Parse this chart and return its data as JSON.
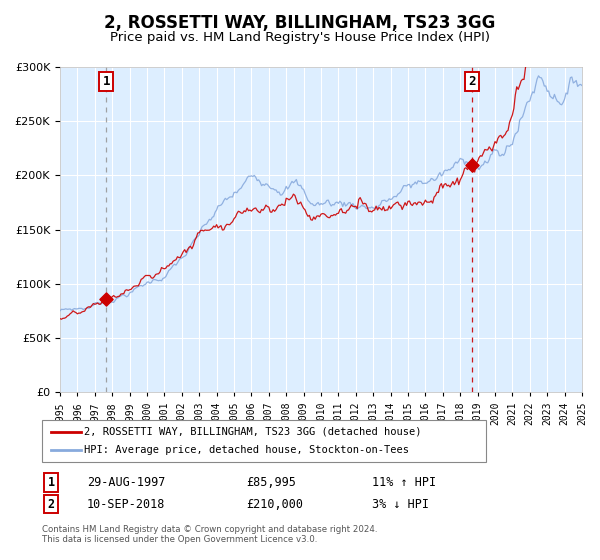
{
  "title": "2, ROSSETTI WAY, BILLINGHAM, TS23 3GG",
  "subtitle": "Price paid vs. HM Land Registry's House Price Index (HPI)",
  "title_fontsize": 12,
  "subtitle_fontsize": 9.5,
  "legend_label_red": "2, ROSSETTI WAY, BILLINGHAM, TS23 3GG (detached house)",
  "legend_label_blue": "HPI: Average price, detached house, Stockton-on-Tees",
  "annotation1_date": "29-AUG-1997",
  "annotation1_price": "£85,995",
  "annotation1_hpi": "11% ↑ HPI",
  "annotation2_date": "10-SEP-2018",
  "annotation2_price": "£210,000",
  "annotation2_hpi": "3% ↓ HPI",
  "footnote": "Contains HM Land Registry data © Crown copyright and database right 2024.\nThis data is licensed under the Open Government Licence v3.0.",
  "sale1_year": 1997.66,
  "sale1_value": 85995,
  "sale2_year": 2018.69,
  "sale2_value": 210000,
  "xlim": [
    1995,
    2025
  ],
  "ylim": [
    0,
    300000
  ],
  "yticks": [
    0,
    50000,
    100000,
    150000,
    200000,
    250000,
    300000
  ],
  "xticks": [
    1995,
    1996,
    1997,
    1998,
    1999,
    2000,
    2001,
    2002,
    2003,
    2004,
    2005,
    2006,
    2007,
    2008,
    2009,
    2010,
    2011,
    2012,
    2013,
    2014,
    2015,
    2016,
    2017,
    2018,
    2019,
    2020,
    2021,
    2022,
    2023,
    2024,
    2025
  ],
  "red_color": "#cc0000",
  "blue_color": "#88aadd",
  "vline1_color": "#999999",
  "vline2_color": "#cc0000",
  "plot_bg_color": "#ddeeff",
  "grid_color": "#ffffff",
  "box_edge_color": "#cc0000"
}
